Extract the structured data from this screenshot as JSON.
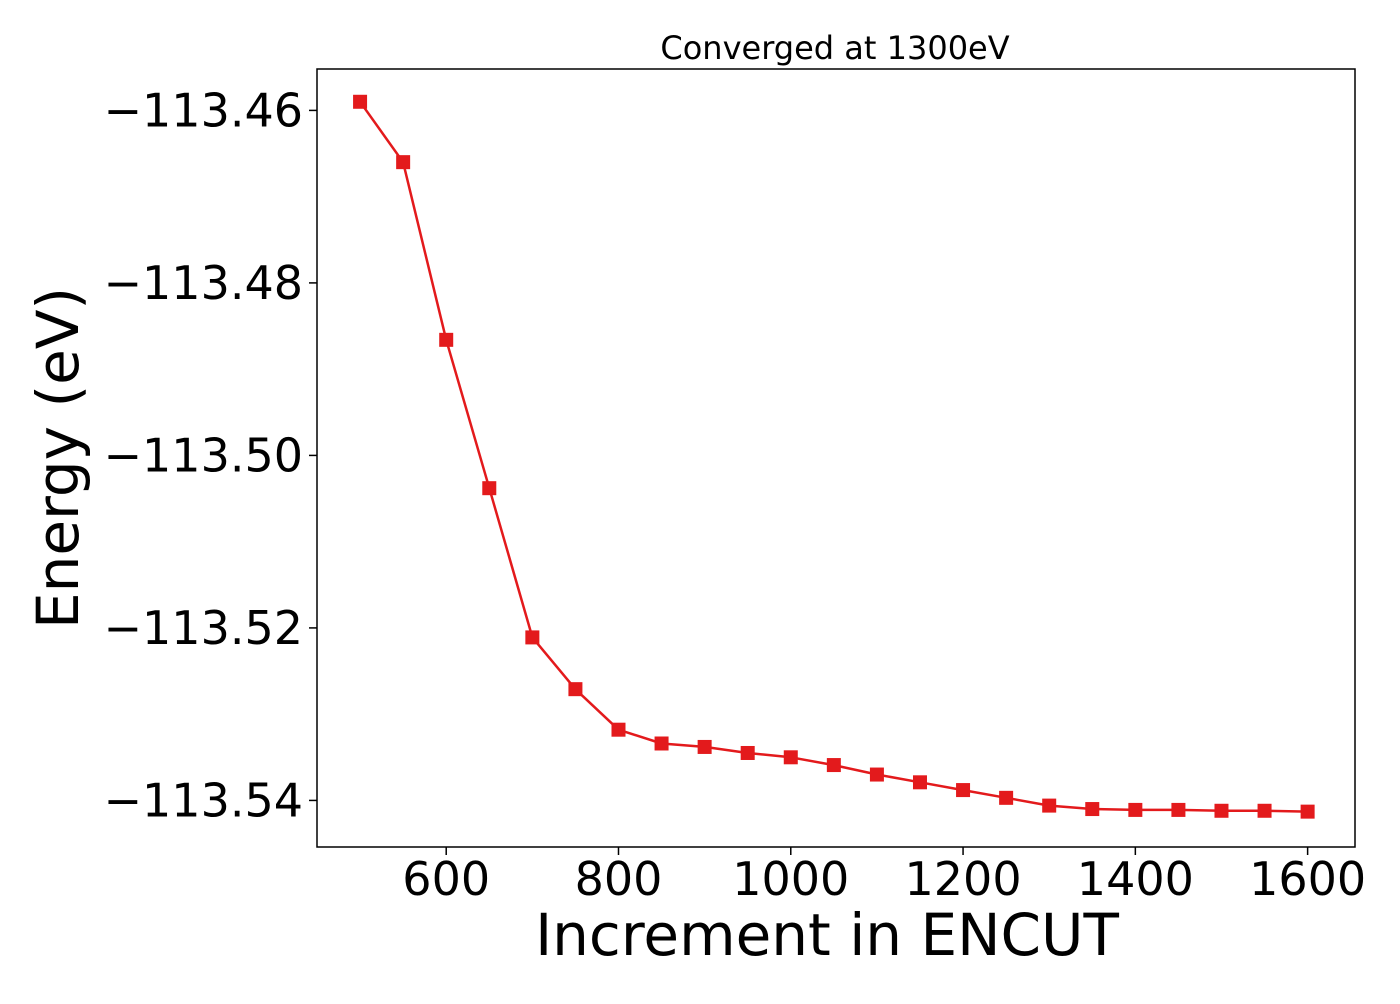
{
  "chart_data": {
    "type": "line",
    "title": "Converged at 1300eV",
    "xlabel": "Increment in ENCUT",
    "ylabel": "Energy (eV)",
    "xlim": [
      450,
      1655
    ],
    "ylim": [
      -113.5454,
      -113.4552
    ],
    "x_ticks": [
      600,
      800,
      1000,
      1200,
      1400,
      1600
    ],
    "y_ticks": [
      -113.46,
      -113.48,
      -113.5,
      -113.52,
      -113.54
    ],
    "y_tick_labels": [
      "−113.46",
      "−113.48",
      "−113.50",
      "−113.52",
      "−113.54"
    ],
    "grid": false,
    "series_color": "#e31a1c",
    "marker": "square",
    "x": [
      500,
      550,
      600,
      650,
      700,
      750,
      800,
      850,
      900,
      950,
      1000,
      1050,
      1100,
      1150,
      1200,
      1250,
      1300,
      1350,
      1400,
      1450,
      1500,
      1550,
      1600
    ],
    "y": [
      -113.459,
      -113.466,
      -113.4866,
      -113.5038,
      -113.5211,
      -113.5271,
      -113.5318,
      -113.5334,
      -113.5338,
      -113.5345,
      -113.535,
      -113.5359,
      -113.537,
      -113.5379,
      -113.5388,
      -113.5397,
      -113.5406,
      -113.541,
      -113.5411,
      -113.5411,
      -113.5412,
      -113.5412,
      -113.5413
    ]
  }
}
